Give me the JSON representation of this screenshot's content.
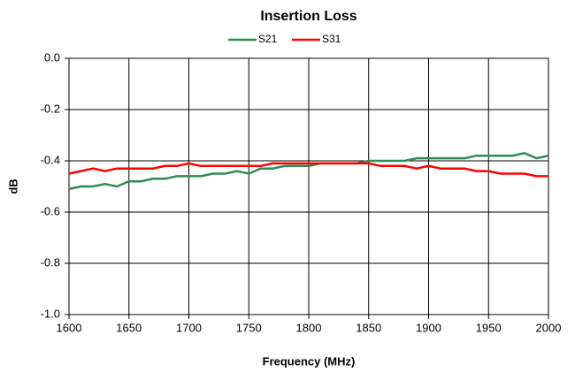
{
  "chart_data": {
    "type": "line",
    "title": "Insertion Loss",
    "xlabel": "Frequency (MHz)",
    "ylabel": "dB",
    "x": [
      1600,
      1610,
      1620,
      1630,
      1640,
      1650,
      1660,
      1670,
      1680,
      1690,
      1700,
      1710,
      1720,
      1730,
      1740,
      1750,
      1760,
      1770,
      1780,
      1790,
      1800,
      1810,
      1820,
      1830,
      1840,
      1850,
      1860,
      1870,
      1880,
      1890,
      1900,
      1910,
      1920,
      1930,
      1940,
      1950,
      1960,
      1970,
      1980,
      1990,
      2000
    ],
    "series": [
      {
        "name": "S21",
        "color": "#2e8b57",
        "values": [
          -0.51,
          -0.5,
          -0.5,
          -0.49,
          -0.5,
          -0.48,
          -0.48,
          -0.47,
          -0.47,
          -0.46,
          -0.46,
          -0.46,
          -0.45,
          -0.45,
          -0.44,
          -0.45,
          -0.43,
          -0.43,
          -0.42,
          -0.42,
          -0.42,
          -0.41,
          -0.41,
          -0.41,
          -0.41,
          -0.4,
          -0.4,
          -0.4,
          -0.4,
          -0.39,
          -0.39,
          -0.39,
          -0.39,
          -0.39,
          -0.38,
          -0.38,
          -0.38,
          -0.38,
          -0.37,
          -0.39,
          -0.38
        ]
      },
      {
        "name": "S31",
        "color": "#ff0000",
        "values": [
          -0.45,
          -0.44,
          -0.43,
          -0.44,
          -0.43,
          -0.43,
          -0.43,
          -0.43,
          -0.42,
          -0.42,
          -0.41,
          -0.42,
          -0.42,
          -0.42,
          -0.42,
          -0.42,
          -0.42,
          -0.41,
          -0.41,
          -0.41,
          -0.41,
          -0.41,
          -0.41,
          -0.41,
          -0.41,
          -0.41,
          -0.42,
          -0.42,
          -0.42,
          -0.43,
          -0.42,
          -0.43,
          -0.43,
          -0.43,
          -0.44,
          -0.44,
          -0.45,
          -0.45,
          -0.45,
          -0.46,
          -0.46
        ]
      }
    ],
    "xlim": [
      1600,
      2000
    ],
    "xticks": [
      1600,
      1650,
      1700,
      1750,
      1800,
      1850,
      1900,
      1950,
      2000
    ],
    "ylim": [
      -1,
      0
    ],
    "yticks": [
      {
        "value": 0,
        "label": "0.0"
      },
      -0.2,
      -0.4,
      -0.6,
      -0.8,
      {
        "value": -1,
        "label": "-1.0"
      }
    ],
    "grid": true,
    "legend": "top"
  }
}
